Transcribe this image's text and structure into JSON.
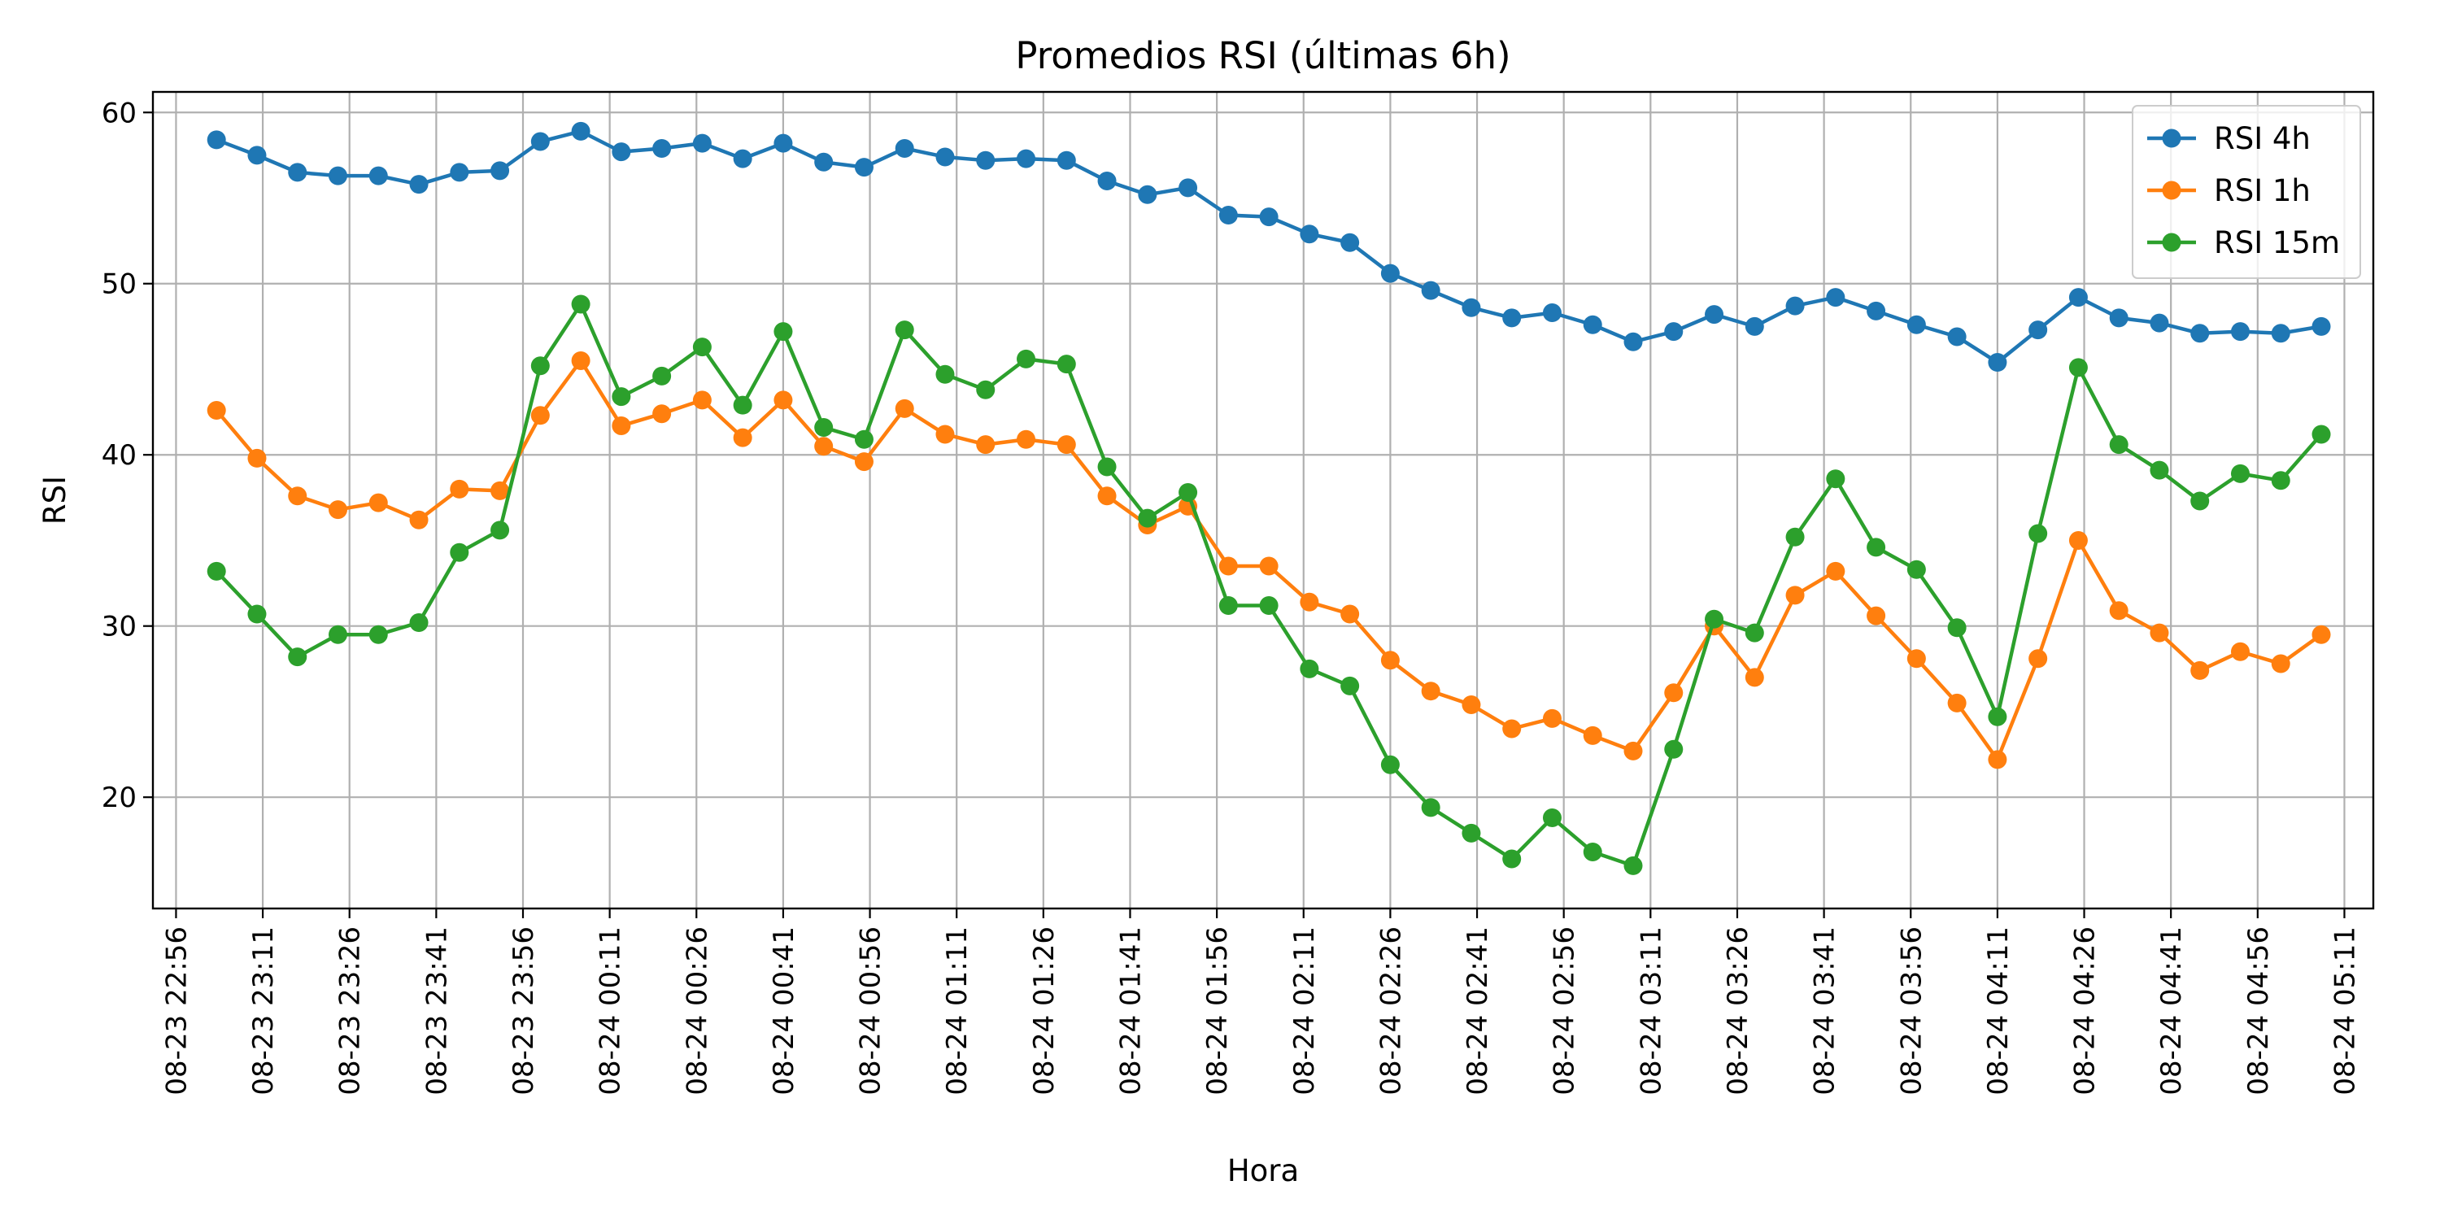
{
  "chart_data": {
    "type": "line",
    "title": "Promedios RSI (últimas 6h)",
    "xlabel": "Hora",
    "ylabel": "RSI",
    "x_range": [
      "2025-08-23T22:52",
      "2025-08-24T05:16"
    ],
    "ylim": [
      13.5,
      61.2
    ],
    "y_ticks": [
      20,
      30,
      40,
      50,
      60
    ],
    "x_ticks": [
      "2025-08-23T22:56",
      "2025-08-23T23:11",
      "2025-08-23T23:26",
      "2025-08-23T23:41",
      "2025-08-23T23:56",
      "2025-08-24T00:11",
      "2025-08-24T00:26",
      "2025-08-24T00:41",
      "2025-08-24T00:56",
      "2025-08-24T01:11",
      "2025-08-24T01:26",
      "2025-08-24T01:41",
      "2025-08-24T01:56",
      "2025-08-24T02:11",
      "2025-08-24T02:26",
      "2025-08-24T02:41",
      "2025-08-24T02:56",
      "2025-08-24T03:11",
      "2025-08-24T03:26",
      "2025-08-24T03:41",
      "2025-08-24T03:56",
      "2025-08-24T04:11",
      "2025-08-24T04:26",
      "2025-08-24T04:41",
      "2025-08-24T04:56",
      "2025-08-24T05:11"
    ],
    "x_tick_labels": [
      "08-23 22:56",
      "08-23 23:11",
      "08-23 23:26",
      "08-23 23:41",
      "08-23 23:56",
      "08-24 00:11",
      "08-24 00:26",
      "08-24 00:41",
      "08-24 00:56",
      "08-24 01:11",
      "08-24 01:26",
      "08-24 01:41",
      "08-24 01:56",
      "08-24 02:11",
      "08-24 02:26",
      "08-24 02:41",
      "08-24 02:56",
      "08-24 03:11",
      "08-24 03:26",
      "08-24 03:41",
      "08-24 03:56",
      "08-24 04:11",
      "08-24 04:26",
      "08-24 04:41",
      "08-24 04:56",
      "08-24 05:11"
    ],
    "x": [
      "2025-08-23T23:03",
      "2025-08-23T23:10",
      "2025-08-23T23:17",
      "2025-08-23T23:24",
      "2025-08-23T23:31",
      "2025-08-23T23:38",
      "2025-08-23T23:45",
      "2025-08-23T23:52",
      "2025-08-23T23:59",
      "2025-08-24T00:06",
      "2025-08-24T00:13",
      "2025-08-24T00:20",
      "2025-08-24T00:27",
      "2025-08-24T00:34",
      "2025-08-24T00:41",
      "2025-08-24T00:48",
      "2025-08-24T00:55",
      "2025-08-24T01:02",
      "2025-08-24T01:09",
      "2025-08-24T01:16",
      "2025-08-24T01:23",
      "2025-08-24T01:30",
      "2025-08-24T01:37",
      "2025-08-24T01:44",
      "2025-08-24T01:51",
      "2025-08-24T01:58",
      "2025-08-24T02:05",
      "2025-08-24T02:12",
      "2025-08-24T02:19",
      "2025-08-24T02:26",
      "2025-08-24T02:33",
      "2025-08-24T02:40",
      "2025-08-24T02:47",
      "2025-08-24T02:54",
      "2025-08-24T03:01",
      "2025-08-24T03:08",
      "2025-08-24T03:15",
      "2025-08-24T03:22",
      "2025-08-24T03:29",
      "2025-08-24T03:36",
      "2025-08-24T03:43",
      "2025-08-24T03:50",
      "2025-08-24T03:57",
      "2025-08-24T04:04",
      "2025-08-24T04:11",
      "2025-08-24T04:18",
      "2025-08-24T04:25",
      "2025-08-24T04:32",
      "2025-08-24T04:39",
      "2025-08-24T04:46",
      "2025-08-24T04:53",
      "2025-08-24T05:00",
      "2025-08-24T05:07"
    ],
    "series": [
      {
        "name": "RSI 4h",
        "color": "#1f77b4",
        "values": [
          58.4,
          57.5,
          56.5,
          56.3,
          56.3,
          55.8,
          56.5,
          56.6,
          58.3,
          58.9,
          57.7,
          57.9,
          58.2,
          57.3,
          58.2,
          57.1,
          56.8,
          57.9,
          57.4,
          57.2,
          57.3,
          57.2,
          56.0,
          55.2,
          55.6,
          54.0,
          53.9,
          52.9,
          52.4,
          50.6,
          49.6,
          48.6,
          48.0,
          48.3,
          47.6,
          46.6,
          47.2,
          48.2,
          47.5,
          48.7,
          49.2,
          48.4,
          47.6,
          46.9,
          45.4,
          47.3,
          49.2,
          48.0,
          47.7,
          47.1,
          47.2,
          47.1,
          47.5
        ]
      },
      {
        "name": "RSI 1h",
        "color": "#ff7f0e",
        "values": [
          42.6,
          39.8,
          37.6,
          36.8,
          37.2,
          36.2,
          38.0,
          37.9,
          42.3,
          45.5,
          41.7,
          42.4,
          43.2,
          41.0,
          43.2,
          40.5,
          39.6,
          42.7,
          41.2,
          40.6,
          40.9,
          40.6,
          37.6,
          35.9,
          37.0,
          33.5,
          33.5,
          31.4,
          30.7,
          28.0,
          26.2,
          25.4,
          24.0,
          24.6,
          23.6,
          22.7,
          26.1,
          30.0,
          27.0,
          31.8,
          33.2,
          30.6,
          28.1,
          25.5,
          22.2,
          28.1,
          35.0,
          30.9,
          29.6,
          27.4,
          28.5,
          27.8,
          29.5
        ]
      },
      {
        "name": "RSI 15m",
        "color": "#2ca02c",
        "values": [
          33.2,
          30.7,
          28.2,
          29.5,
          29.5,
          30.2,
          34.3,
          35.6,
          45.2,
          48.8,
          43.4,
          44.6,
          46.3,
          42.9,
          47.2,
          41.6,
          40.9,
          47.3,
          44.7,
          43.8,
          45.6,
          45.3,
          39.3,
          36.3,
          37.8,
          31.2,
          31.2,
          27.5,
          26.5,
          21.9,
          19.4,
          17.9,
          16.4,
          18.8,
          16.8,
          16.0,
          22.8,
          30.4,
          29.6,
          35.2,
          38.6,
          34.6,
          33.3,
          29.9,
          24.7,
          35.4,
          45.1,
          40.6,
          39.1,
          37.3,
          38.9,
          38.5,
          41.2
        ]
      }
    ],
    "grid": true,
    "legend": "top-right",
    "marker": "circle"
  }
}
